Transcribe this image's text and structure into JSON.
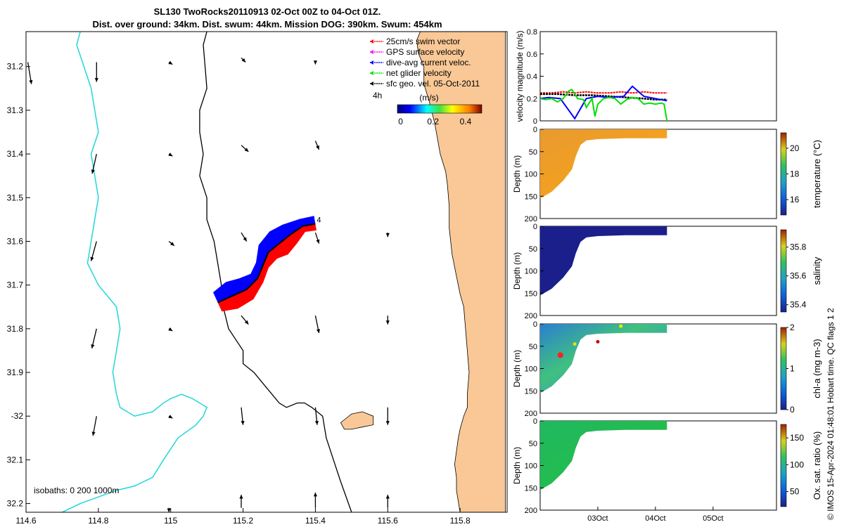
{
  "title": {
    "line1": "SL130 TwoRocks20110913 02-Oct 00Z to 04-Oct 01Z.",
    "line2": "Dist. over ground: 34km. Dist. swum: 44km. Mission DOG: 390km. Swum: 454km"
  },
  "colors": {
    "land": "#f9c896",
    "bathy_200": "#000000",
    "bathy_1000": "#2ed8d8",
    "track_red": "#ff0000",
    "track_blue": "#0000ff",
    "swim_vector": "#ff0000",
    "gps_vector": "#ff00ff",
    "dive_avg_vector": "#0000ff",
    "net_vector": "#00e000",
    "sfc_geo_vector": "#000000",
    "temperature_fill": "#f0a020",
    "salinity_fill": "#1a1f8c",
    "chla_fill": "#2fb8a0",
    "oxsat_fill": "#22c040"
  },
  "chart_data": [
    {
      "type": "scatter",
      "name": "map",
      "xlim": [
        114.6,
        115.93
      ],
      "ylim": [
        -32.22,
        -31.12
      ],
      "xticks": [
        {
          "value": 114.6,
          "label": "114.6"
        },
        {
          "value": 114.8,
          "label": "114.8"
        },
        {
          "value": 115.0,
          "label": "115"
        },
        {
          "value": 115.2,
          "label": "115.2"
        },
        {
          "value": 115.4,
          "label": "115.4"
        },
        {
          "value": 115.6,
          "label": "115.6"
        },
        {
          "value": 115.8,
          "label": "115.8"
        }
      ],
      "yticks": [
        {
          "value": -31.2,
          "label": "31.2"
        },
        {
          "value": -31.3,
          "label": "31.3"
        },
        {
          "value": -31.4,
          "label": "31.4"
        },
        {
          "value": -31.5,
          "label": "31.5"
        },
        {
          "value": -31.6,
          "label": "31.6"
        },
        {
          "value": -31.7,
          "label": "31.7"
        },
        {
          "value": -31.8,
          "label": "31.8"
        },
        {
          "value": -31.9,
          "label": "31.9"
        },
        {
          "value": -32.0,
          "label": "-32"
        },
        {
          "value": -32.1,
          "label": "32.1"
        },
        {
          "value": -32.2,
          "label": "32.2"
        }
      ],
      "legend": {
        "placement": "top-right",
        "entries": [
          {
            "label": "25cm/s swim vector",
            "color": "#ff0000"
          },
          {
            "label": "GPS surface velocity",
            "color": "#ff00ff"
          },
          {
            "label": "dive-avg current veloc.",
            "color": "#0000ff"
          },
          {
            "label": "net glider velocity",
            "color": "#00e000"
          },
          {
            "label": "sfc geo. vel. 05-Oct-2011",
            "color": "#000000"
          }
        ],
        "time_label": "4h",
        "colorbar_label": "(m/s)",
        "colorbar_ticks": [
          {
            "value": 0,
            "label": "0"
          },
          {
            "value": 0.2,
            "label": "0.2"
          },
          {
            "value": 0.4,
            "label": "0.4"
          }
        ],
        "colorbar_range": [
          -0.02,
          0.5
        ]
      },
      "isobath_label": "isobaths: 0   200   1000m",
      "track_end_label": "4",
      "track": [
        [
          115.13,
          -31.74
        ],
        [
          115.17,
          -31.725
        ],
        [
          115.21,
          -31.71
        ],
        [
          115.24,
          -31.685
        ],
        [
          115.255,
          -31.655
        ],
        [
          115.27,
          -31.625
        ],
        [
          115.3,
          -31.605
        ],
        [
          115.33,
          -31.585
        ],
        [
          115.365,
          -31.565
        ],
        [
          115.4,
          -31.56
        ]
      ],
      "coastline": [
        [
          115.925,
          -31.12
        ],
        [
          115.69,
          -31.12
        ],
        [
          115.68,
          -31.14
        ],
        [
          115.685,
          -31.17
        ],
        [
          115.7,
          -31.2
        ],
        [
          115.7,
          -31.24
        ],
        [
          115.715,
          -31.28
        ],
        [
          115.73,
          -31.33
        ],
        [
          115.745,
          -31.4
        ],
        [
          115.76,
          -31.44
        ],
        [
          115.765,
          -31.47
        ],
        [
          115.77,
          -31.52
        ],
        [
          115.77,
          -31.57
        ],
        [
          115.778,
          -31.63
        ],
        [
          115.79,
          -31.68
        ],
        [
          115.8,
          -31.72
        ],
        [
          115.81,
          -31.75
        ],
        [
          115.815,
          -31.8
        ],
        [
          115.82,
          -31.85
        ],
        [
          115.825,
          -31.9
        ],
        [
          115.82,
          -31.95
        ],
        [
          115.82,
          -31.98
        ],
        [
          115.81,
          -32.0
        ],
        [
          115.8,
          -32.03
        ],
        [
          115.795,
          -32.05
        ],
        [
          115.79,
          -32.08
        ],
        [
          115.785,
          -32.11
        ],
        [
          115.79,
          -32.14
        ],
        [
          115.79,
          -32.17
        ],
        [
          115.8,
          -32.22
        ],
        [
          115.925,
          -32.22
        ]
      ],
      "island": [
        [
          115.47,
          -32.015
        ],
        [
          115.5,
          -31.995
        ],
        [
          115.53,
          -31.99
        ],
        [
          115.56,
          -32.0
        ],
        [
          115.56,
          -32.02
        ],
        [
          115.53,
          -32.025
        ],
        [
          115.5,
          -32.03
        ],
        [
          115.48,
          -32.03
        ]
      ],
      "isobath_200": [
        [
          115.1,
          -31.12
        ],
        [
          115.09,
          -31.15
        ],
        [
          115.095,
          -31.2
        ],
        [
          115.1,
          -31.25
        ],
        [
          115.08,
          -31.3
        ],
        [
          115.08,
          -31.35
        ],
        [
          115.09,
          -31.4
        ],
        [
          115.08,
          -31.45
        ],
        [
          115.1,
          -31.5
        ],
        [
          115.1,
          -31.55
        ],
        [
          115.12,
          -31.6
        ],
        [
          115.13,
          -31.65
        ],
        [
          115.14,
          -31.7
        ],
        [
          115.145,
          -31.75
        ],
        [
          115.16,
          -31.8
        ],
        [
          115.2,
          -31.85
        ],
        [
          115.2,
          -31.88
        ],
        [
          115.23,
          -31.9
        ],
        [
          115.26,
          -31.93
        ],
        [
          115.28,
          -31.95
        ],
        [
          115.3,
          -31.97
        ],
        [
          115.32,
          -31.98
        ],
        [
          115.35,
          -31.97
        ],
        [
          115.37,
          -31.97
        ],
        [
          115.39,
          -31.98
        ],
        [
          115.42,
          -32.0
        ],
        [
          115.43,
          -32.05
        ],
        [
          115.45,
          -32.1
        ],
        [
          115.47,
          -32.15
        ],
        [
          115.5,
          -32.22
        ]
      ],
      "isobath_1000": [
        [
          114.75,
          -31.12
        ],
        [
          114.74,
          -31.15
        ],
        [
          114.76,
          -31.2
        ],
        [
          114.78,
          -31.25
        ],
        [
          114.79,
          -31.3
        ],
        [
          114.8,
          -31.35
        ],
        [
          114.78,
          -31.4
        ],
        [
          114.79,
          -31.45
        ],
        [
          114.8,
          -31.5
        ],
        [
          114.79,
          -31.55
        ],
        [
          114.78,
          -31.6
        ],
        [
          114.77,
          -31.65
        ],
        [
          114.8,
          -31.7
        ],
        [
          114.85,
          -31.75
        ],
        [
          114.86,
          -31.8
        ],
        [
          114.85,
          -31.85
        ],
        [
          114.84,
          -31.9
        ],
        [
          114.85,
          -31.95
        ],
        [
          114.86,
          -31.98
        ],
        [
          114.88,
          -31.99
        ],
        [
          114.9,
          -32.0
        ],
        [
          114.95,
          -31.99
        ],
        [
          114.98,
          -31.97
        ],
        [
          115.0,
          -31.96
        ],
        [
          115.03,
          -31.95
        ],
        [
          115.06,
          -31.96
        ],
        [
          115.08,
          -31.97
        ],
        [
          115.1,
          -31.98
        ],
        [
          115.09,
          -32.0
        ],
        [
          115.07,
          -32.02
        ],
        [
          115.02,
          -32.05
        ],
        [
          114.98,
          -32.1
        ],
        [
          114.95,
          -32.14
        ],
        [
          114.9,
          -32.16
        ],
        [
          114.85,
          -32.17
        ],
        [
          114.75,
          -32.2
        ],
        [
          114.7,
          -32.22
        ]
      ],
      "vectors": [
        [
          114.605,
          -31.19,
          0.01,
          -0.05
        ],
        [
          114.795,
          -31.19,
          0.0,
          -0.045
        ],
        [
          114.995,
          -31.19,
          0.01,
          -0.005
        ],
        [
          115.195,
          -31.18,
          0.012,
          -0.01
        ],
        [
          115.4,
          -31.19,
          0.0,
          -0.005
        ],
        [
          114.795,
          -31.4,
          -0.012,
          -0.045
        ],
        [
          114.995,
          -31.4,
          0.01,
          -0.005
        ],
        [
          115.195,
          -31.38,
          0.02,
          -0.015
        ],
        [
          115.4,
          -31.37,
          0.01,
          -0.02
        ],
        [
          114.795,
          -31.6,
          -0.015,
          -0.045
        ],
        [
          114.995,
          -31.6,
          0.015,
          -0.01
        ],
        [
          115.195,
          -31.58,
          0.015,
          -0.02
        ],
        [
          115.4,
          -31.58,
          0.01,
          -0.025
        ],
        [
          114.795,
          -31.8,
          -0.013,
          -0.045
        ],
        [
          114.995,
          -31.8,
          0.01,
          -0.005
        ],
        [
          115.195,
          -31.77,
          0.02,
          -0.02
        ],
        [
          115.4,
          -31.77,
          0.01,
          -0.04
        ],
        [
          115.6,
          -31.77,
          0.0,
          -0.02
        ],
        [
          114.795,
          -32.0,
          -0.01,
          -0.045
        ],
        [
          114.995,
          -32.0,
          0.01,
          -0.005
        ],
        [
          115.195,
          -31.98,
          0.005,
          -0.04
        ],
        [
          115.4,
          -31.98,
          0.005,
          -0.04
        ],
        [
          115.6,
          -31.98,
          0.0,
          -0.04
        ],
        [
          114.995,
          -32.21,
          0.0,
          -0.01
        ],
        [
          115.195,
          -32.21,
          0.0,
          0.03
        ],
        [
          115.4,
          -32.21,
          0.0,
          0.035
        ],
        [
          115.6,
          -32.21,
          0.0,
          0.03
        ],
        [
          115.6,
          -31.58,
          0.0,
          -0.01
        ]
      ]
    },
    {
      "type": "line",
      "name": "velocity",
      "ylabel": "velocity magnitude (m/s)",
      "ylim": [
        0,
        0.8
      ],
      "xlim": [
        0,
        4.1
      ],
      "yticks": [
        {
          "value": 0,
          "label": "0"
        },
        {
          "value": 0.2,
          "label": "0.2"
        },
        {
          "value": 0.4,
          "label": "0.4"
        },
        {
          "value": 0.6,
          "label": "0.6"
        },
        {
          "value": 0.8,
          "label": "0.8"
        }
      ],
      "series": [
        {
          "name": "swim",
          "color": "#ff0000",
          "x": [
            0,
            0.2,
            0.4,
            0.6,
            0.8,
            1.0,
            1.2,
            1.4,
            1.6,
            1.8,
            2.0,
            2.2
          ],
          "y": [
            0.25,
            0.25,
            0.26,
            0.25,
            0.26,
            0.25,
            0.25,
            0.26,
            0.25,
            0.26,
            0.25,
            0.25
          ]
        },
        {
          "name": "sfc geo",
          "color": "#000000",
          "x": [
            0,
            0.3,
            0.6,
            0.9,
            1.2,
            1.5,
            1.8,
            2.0,
            2.2
          ],
          "y": [
            0.24,
            0.24,
            0.23,
            0.23,
            0.22,
            0.21,
            0.2,
            0.19,
            0.19
          ]
        },
        {
          "name": "dive-avg",
          "color": "#0000ff",
          "x": [
            0,
            0.15,
            0.35,
            0.6,
            0.8,
            1.0,
            1.2,
            1.45,
            1.6,
            1.8,
            2.0,
            2.2
          ],
          "y": [
            0.2,
            0.21,
            0.2,
            0.02,
            0.2,
            0.22,
            0.21,
            0.22,
            0.31,
            0.22,
            0.2,
            0.18
          ]
        },
        {
          "name": "net glider",
          "color": "#00e000",
          "x": [
            0,
            0.1,
            0.2,
            0.3,
            0.4,
            0.5,
            0.55,
            0.65,
            0.75,
            0.8,
            0.9,
            0.95,
            1.0,
            1.1,
            1.2,
            1.3,
            1.4,
            1.5,
            1.6,
            1.7,
            1.8,
            1.9,
            2.0,
            2.1,
            2.15,
            2.2
          ],
          "y": [
            0.2,
            0.19,
            0.2,
            0.17,
            0.2,
            0.27,
            0.28,
            0.2,
            0.19,
            0.12,
            0.2,
            0.04,
            0.15,
            0.2,
            0.21,
            0.2,
            0.15,
            0.19,
            0.21,
            0.2,
            0.15,
            0.16,
            0.15,
            0.16,
            0.15,
            0.0
          ]
        }
      ]
    },
    {
      "type": "heatmap",
      "name": "temperature",
      "ylabel": "Depth (m)",
      "ylim": [
        0,
        200
      ],
      "yticks": [
        {
          "value": 0,
          "label": "0"
        },
        {
          "value": 50,
          "label": "50"
        },
        {
          "value": 100,
          "label": "100"
        },
        {
          "value": 150,
          "label": "150"
        },
        {
          "value": 200,
          "label": "200"
        }
      ],
      "colorbar_label": "temperature (°C)",
      "colorbar_range": [
        14.8,
        21.2
      ],
      "colorbar_ticks": [
        {
          "value": 16,
          "label": "16"
        },
        {
          "value": 18,
          "label": "18"
        },
        {
          "value": 20,
          "label": "20"
        }
      ]
    },
    {
      "type": "heatmap",
      "name": "salinity",
      "ylabel": "Depth (m)",
      "ylim": [
        0,
        200
      ],
      "yticks": [
        {
          "value": 0,
          "label": "0"
        },
        {
          "value": 50,
          "label": "50"
        },
        {
          "value": 100,
          "label": "100"
        },
        {
          "value": 150,
          "label": "150"
        },
        {
          "value": 200,
          "label": "200"
        }
      ],
      "colorbar_label": "salinity",
      "colorbar_range": [
        35.35,
        35.92
      ],
      "colorbar_ticks": [
        {
          "value": 35.4,
          "label": "35.4"
        },
        {
          "value": 35.6,
          "label": "35.6"
        },
        {
          "value": 35.8,
          "label": "35.8"
        }
      ]
    },
    {
      "type": "heatmap",
      "name": "chla",
      "ylabel": "Depth (m)",
      "ylim": [
        0,
        200
      ],
      "yticks": [
        {
          "value": 0,
          "label": "0"
        },
        {
          "value": 50,
          "label": "50"
        },
        {
          "value": 100,
          "label": "100"
        },
        {
          "value": 150,
          "label": "150"
        },
        {
          "value": 200,
          "label": "200"
        }
      ],
      "colorbar_label": "chl-a (mg m-3)",
      "colorbar_range": [
        0,
        2
      ],
      "colorbar_ticks": [
        {
          "value": 0,
          "label": "0"
        },
        {
          "value": 1,
          "label": "1"
        },
        {
          "value": 2,
          "label": "2"
        }
      ]
    },
    {
      "type": "heatmap",
      "name": "oxsat",
      "ylabel": "Depth (m)",
      "ylim": [
        0,
        200
      ],
      "yticks": [
        {
          "value": 0,
          "label": "0"
        },
        {
          "value": 50,
          "label": "50"
        },
        {
          "value": 100,
          "label": "100"
        },
        {
          "value": 150,
          "label": "150"
        },
        {
          "value": 200,
          "label": "200"
        }
      ],
      "colorbar_label": "Ox. sat. ratio (%)",
      "colorbar_range": [
        22,
        175
      ],
      "colorbar_ticks": [
        {
          "value": 50,
          "label": "50"
        },
        {
          "value": 100,
          "label": "100"
        },
        {
          "value": 150,
          "label": "150"
        }
      ],
      "xticks": [
        {
          "value": 1,
          "label": "03Oct"
        },
        {
          "value": 2,
          "label": "04Oct"
        },
        {
          "value": 3,
          "label": "05Oct"
        }
      ],
      "xlim": [
        0,
        4.1
      ]
    }
  ],
  "section_profile": {
    "x_end": 2.2,
    "shelf_break_x": 0.75,
    "profile": [
      [
        0,
        155
      ],
      [
        0.2,
        140
      ],
      [
        0.4,
        115
      ],
      [
        0.55,
        90
      ],
      [
        0.62,
        60
      ],
      [
        0.7,
        35
      ],
      [
        0.8,
        25
      ],
      [
        1.0,
        22
      ],
      [
        1.5,
        20
      ],
      [
        2.2,
        20
      ]
    ]
  },
  "side_note": "© IMOS 15-Apr-2024 01:48:01 Hobart time. QC flags 1  2"
}
